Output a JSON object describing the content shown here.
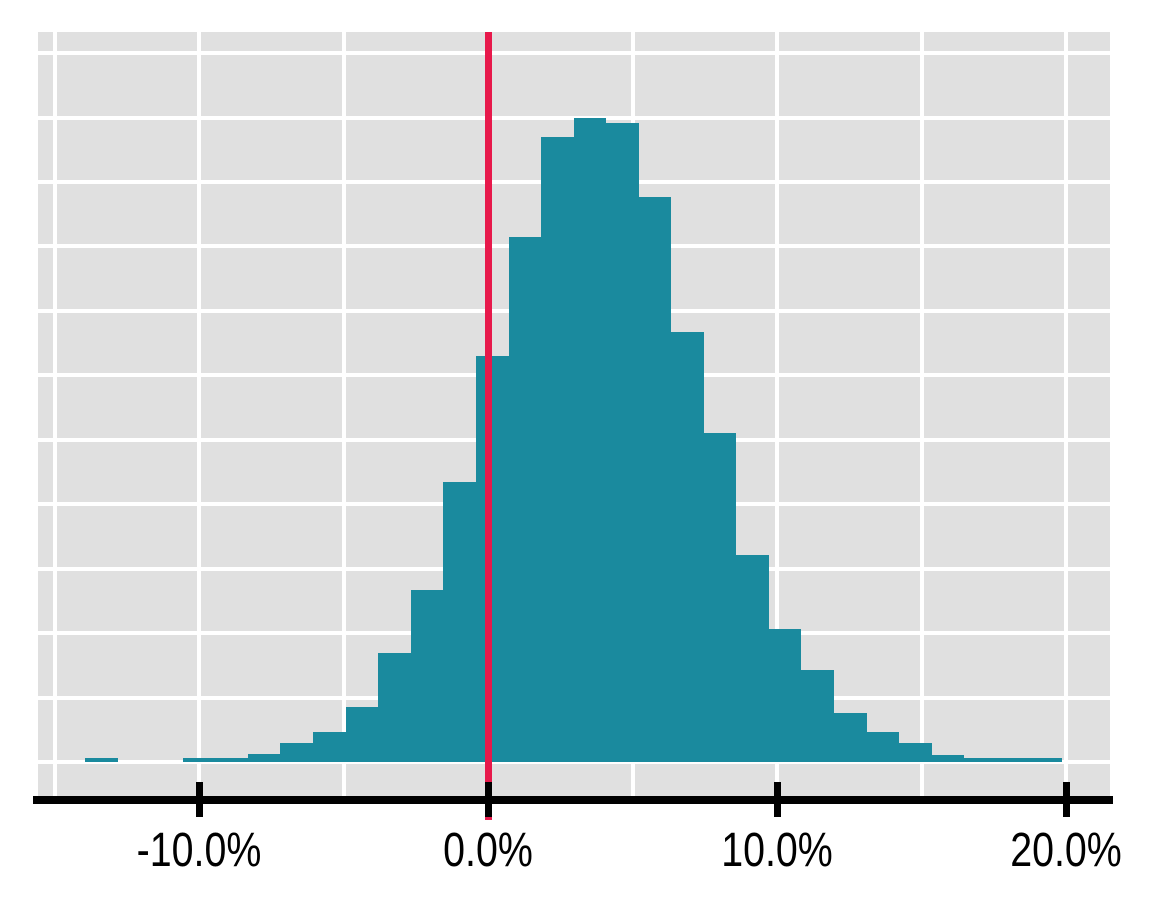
{
  "figure": {
    "background": "#ffffff",
    "title": ""
  },
  "chart_data": {
    "type": "bar",
    "subtype": "histogram",
    "title": "",
    "xlabel": "",
    "ylabel": "",
    "x_unit": "percent",
    "legend": "none",
    "grid": "on",
    "panel_background": "#e0e0e0",
    "gridline_color": "#ffffff",
    "bar_color": "#1a8a9e",
    "axis_color": "#000000",
    "reference_line": {
      "x_percent": 0.0,
      "color": "#e7194b"
    },
    "x_range_percent": [
      -15.5,
      21.5
    ],
    "y_range_units": [
      -0.53,
      11.33
    ],
    "y_axis_labels_visible": false,
    "y_gridline_units": [
      0,
      1,
      2,
      3,
      4,
      5,
      6,
      7,
      8,
      9,
      10,
      11
    ],
    "x_gridlines_percent": [
      -15,
      -10,
      -5,
      0,
      5,
      10,
      15,
      20
    ],
    "x_ticks": [
      {
        "value": -10,
        "label": "-10.0%"
      },
      {
        "value": 0,
        "label": "0.0%"
      },
      {
        "value": 10,
        "label": "10.0%"
      },
      {
        "value": 20,
        "label": "20.0%"
      }
    ],
    "bin_width_percent": 1.127,
    "bins": [
      {
        "from": -13.94,
        "to": -12.81,
        "height": 0.06
      },
      {
        "from": -12.81,
        "to": -11.69,
        "height": 0.0
      },
      {
        "from": -11.69,
        "to": -10.56,
        "height": 0.0
      },
      {
        "from": -10.56,
        "to": -9.43,
        "height": 0.06
      },
      {
        "from": -9.43,
        "to": -8.31,
        "height": 0.06
      },
      {
        "from": -8.31,
        "to": -7.18,
        "height": 0.12
      },
      {
        "from": -7.18,
        "to": -6.05,
        "height": 0.29
      },
      {
        "from": -6.05,
        "to": -4.93,
        "height": 0.47
      },
      {
        "from": -4.93,
        "to": -3.8,
        "height": 0.85
      },
      {
        "from": -3.8,
        "to": -2.67,
        "height": 1.69
      },
      {
        "from": -2.67,
        "to": -1.55,
        "height": 2.67
      },
      {
        "from": -1.55,
        "to": -0.42,
        "height": 4.34
      },
      {
        "from": -0.42,
        "to": 0.71,
        "height": 6.3
      },
      {
        "from": 0.71,
        "to": 1.83,
        "height": 8.15
      },
      {
        "from": 1.83,
        "to": 2.96,
        "height": 9.7
      },
      {
        "from": 2.96,
        "to": 4.08,
        "height": 9.99
      },
      {
        "from": 4.08,
        "to": 5.21,
        "height": 9.91
      },
      {
        "from": 5.21,
        "to": 6.34,
        "height": 8.77
      },
      {
        "from": 6.34,
        "to": 7.46,
        "height": 6.67
      },
      {
        "from": 7.46,
        "to": 8.59,
        "height": 5.1
      },
      {
        "from": 8.59,
        "to": 9.72,
        "height": 3.21
      },
      {
        "from": 9.72,
        "to": 10.84,
        "height": 2.06
      },
      {
        "from": 10.84,
        "to": 11.97,
        "height": 1.43
      },
      {
        "from": 11.97,
        "to": 13.1,
        "height": 0.76
      },
      {
        "from": 13.1,
        "to": 14.22,
        "height": 0.47
      },
      {
        "from": 14.22,
        "to": 15.35,
        "height": 0.29
      },
      {
        "from": 15.35,
        "to": 16.47,
        "height": 0.11
      },
      {
        "from": 16.47,
        "to": 17.6,
        "height": 0.06
      },
      {
        "from": 17.6,
        "to": 18.73,
        "height": 0.06
      },
      {
        "from": 18.73,
        "to": 19.85,
        "height": 0.06
      }
    ]
  }
}
